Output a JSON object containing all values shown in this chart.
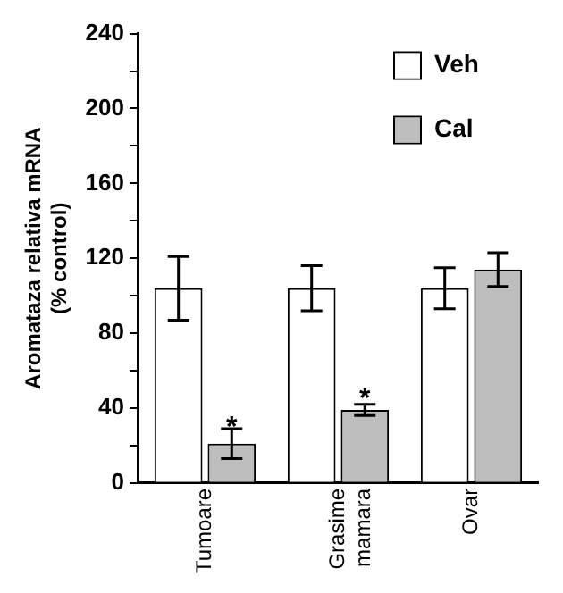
{
  "chart_data": {
    "type": "bar",
    "ylabel": "Aromataza relativa mRNA\n(% control)",
    "categories": [
      "Tumoare",
      "Grasime\nmamara",
      "Ovar"
    ],
    "series": [
      {
        "name": "Veh",
        "color": "#ffffff",
        "values": [
          104,
          104,
          104
        ],
        "errors": [
          17,
          12,
          11
        ]
      },
      {
        "name": "Cal",
        "color": "#bdbdbd",
        "values": [
          21,
          39,
          114
        ],
        "errors": [
          8,
          3,
          9
        ]
      }
    ],
    "ylim": [
      0,
      240
    ],
    "yticks": [
      0,
      {
        "value": 20,
        "label": null
      },
      40,
      {
        "value": 60,
        "label": null
      },
      80,
      {
        "value": 100,
        "label": null
      },
      120,
      {
        "value": 140,
        "label": null
      },
      160,
      {
        "value": 180,
        "label": null
      },
      200,
      {
        "value": 220,
        "label": null
      },
      240
    ],
    "grid": false,
    "legend": "top right",
    "annotations": [
      {
        "text": "*",
        "x": "Tumoare",
        "y": 33
      },
      {
        "text": "*",
        "x": "Grasime\nmamara",
        "y": 48
      }
    ]
  }
}
